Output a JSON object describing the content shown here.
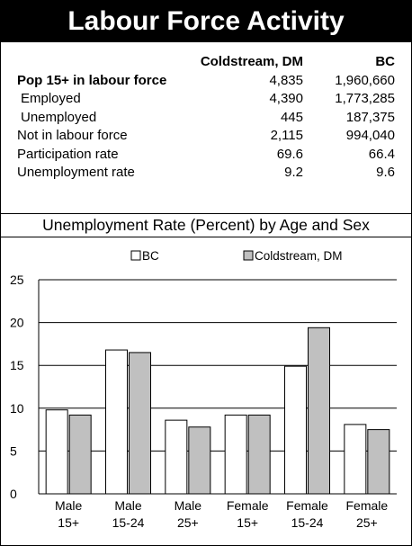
{
  "title": "Labour Force Activity",
  "table": {
    "columns": [
      "Coldstream, DM",
      "BC"
    ],
    "rows": [
      {
        "label": "Pop 15+ in labour force",
        "values": [
          "4,835",
          "1,960,660"
        ],
        "bold": true,
        "indent": false
      },
      {
        "label": "Employed",
        "values": [
          "4,390",
          "1,773,285"
        ],
        "bold": false,
        "indent": true
      },
      {
        "label": "Unemployed",
        "values": [
          "445",
          "187,375"
        ],
        "bold": false,
        "indent": true
      },
      {
        "label": "Not in labour force",
        "values": [
          "2,115",
          "994,040"
        ],
        "bold": false,
        "indent": false
      },
      {
        "label": "Participation rate",
        "values": [
          "69.6",
          "66.4"
        ],
        "bold": false,
        "indent": false
      },
      {
        "label": "Unemployment rate",
        "values": [
          "9.2",
          "9.6"
        ],
        "bold": false,
        "indent": false
      }
    ]
  },
  "chart_data": {
    "type": "bar",
    "title": "Unemployment Rate (Percent) by Age and Sex",
    "categories": [
      [
        "Male",
        "15+"
      ],
      [
        "Male",
        "15-24"
      ],
      [
        "Male",
        "25+"
      ],
      [
        "Female",
        "15+"
      ],
      [
        "Female",
        "15-24"
      ],
      [
        "Female",
        "25+"
      ]
    ],
    "series": [
      {
        "name": "BC",
        "color": "#ffffff",
        "values": [
          9.8,
          16.8,
          8.6,
          9.2,
          14.9,
          8.1
        ]
      },
      {
        "name": "Coldstream, DM",
        "color": "#c0c0c0",
        "values": [
          9.2,
          16.5,
          7.8,
          9.2,
          19.4,
          7.5
        ]
      }
    ],
    "ylim": [
      0,
      25
    ],
    "yticks": [
      0,
      5,
      10,
      15,
      20,
      25
    ],
    "grid": true,
    "legend": "top"
  }
}
